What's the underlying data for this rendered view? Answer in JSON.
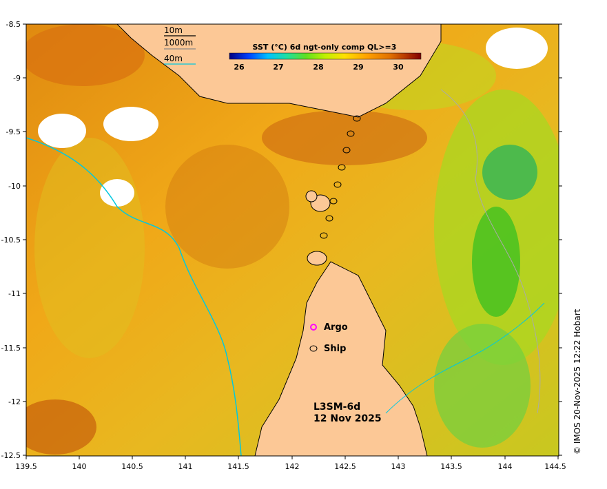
{
  "map": {
    "colorbar": {
      "title": "SST (°C) 6d ngt-only comp QL>=3",
      "ticks": [
        "26",
        "27",
        "28",
        "29",
        "30"
      ],
      "colors": [
        "#000080",
        "#0040ff",
        "#00c0ff",
        "#20e0a0",
        "#60e020",
        "#c0f000",
        "#ffe000",
        "#ffa000",
        "#e07000",
        "#b03000",
        "#800000"
      ]
    },
    "depth_legend": {
      "items": [
        {
          "label": "10m",
          "color": "#000000"
        },
        {
          "label": "1000m",
          "color": "#888888"
        },
        {
          "label": "40m",
          "color": "#00c8e0"
        }
      ]
    },
    "markers": {
      "argo_label": "Argo",
      "argo_color": "#ff00ff",
      "ship_label": "Ship"
    },
    "product": {
      "line1": "L3SM-6d",
      "line2": "12 Nov 2025"
    },
    "credit": "© IMOS 20-Nov-2025 12:22 Hobart",
    "x_ticks": [
      "139.5",
      "140",
      "140.5",
      "141",
      "141.5",
      "142",
      "142.5",
      "143",
      "143.5",
      "144",
      "144.5"
    ],
    "y_ticks": [
      "-8.5",
      "-9",
      "-9.5",
      "-10",
      "-10.5",
      "-11",
      "-11.5",
      "-12",
      "-12.5"
    ],
    "land_color": "#fcc896",
    "nodata_color": "#ffffff"
  }
}
